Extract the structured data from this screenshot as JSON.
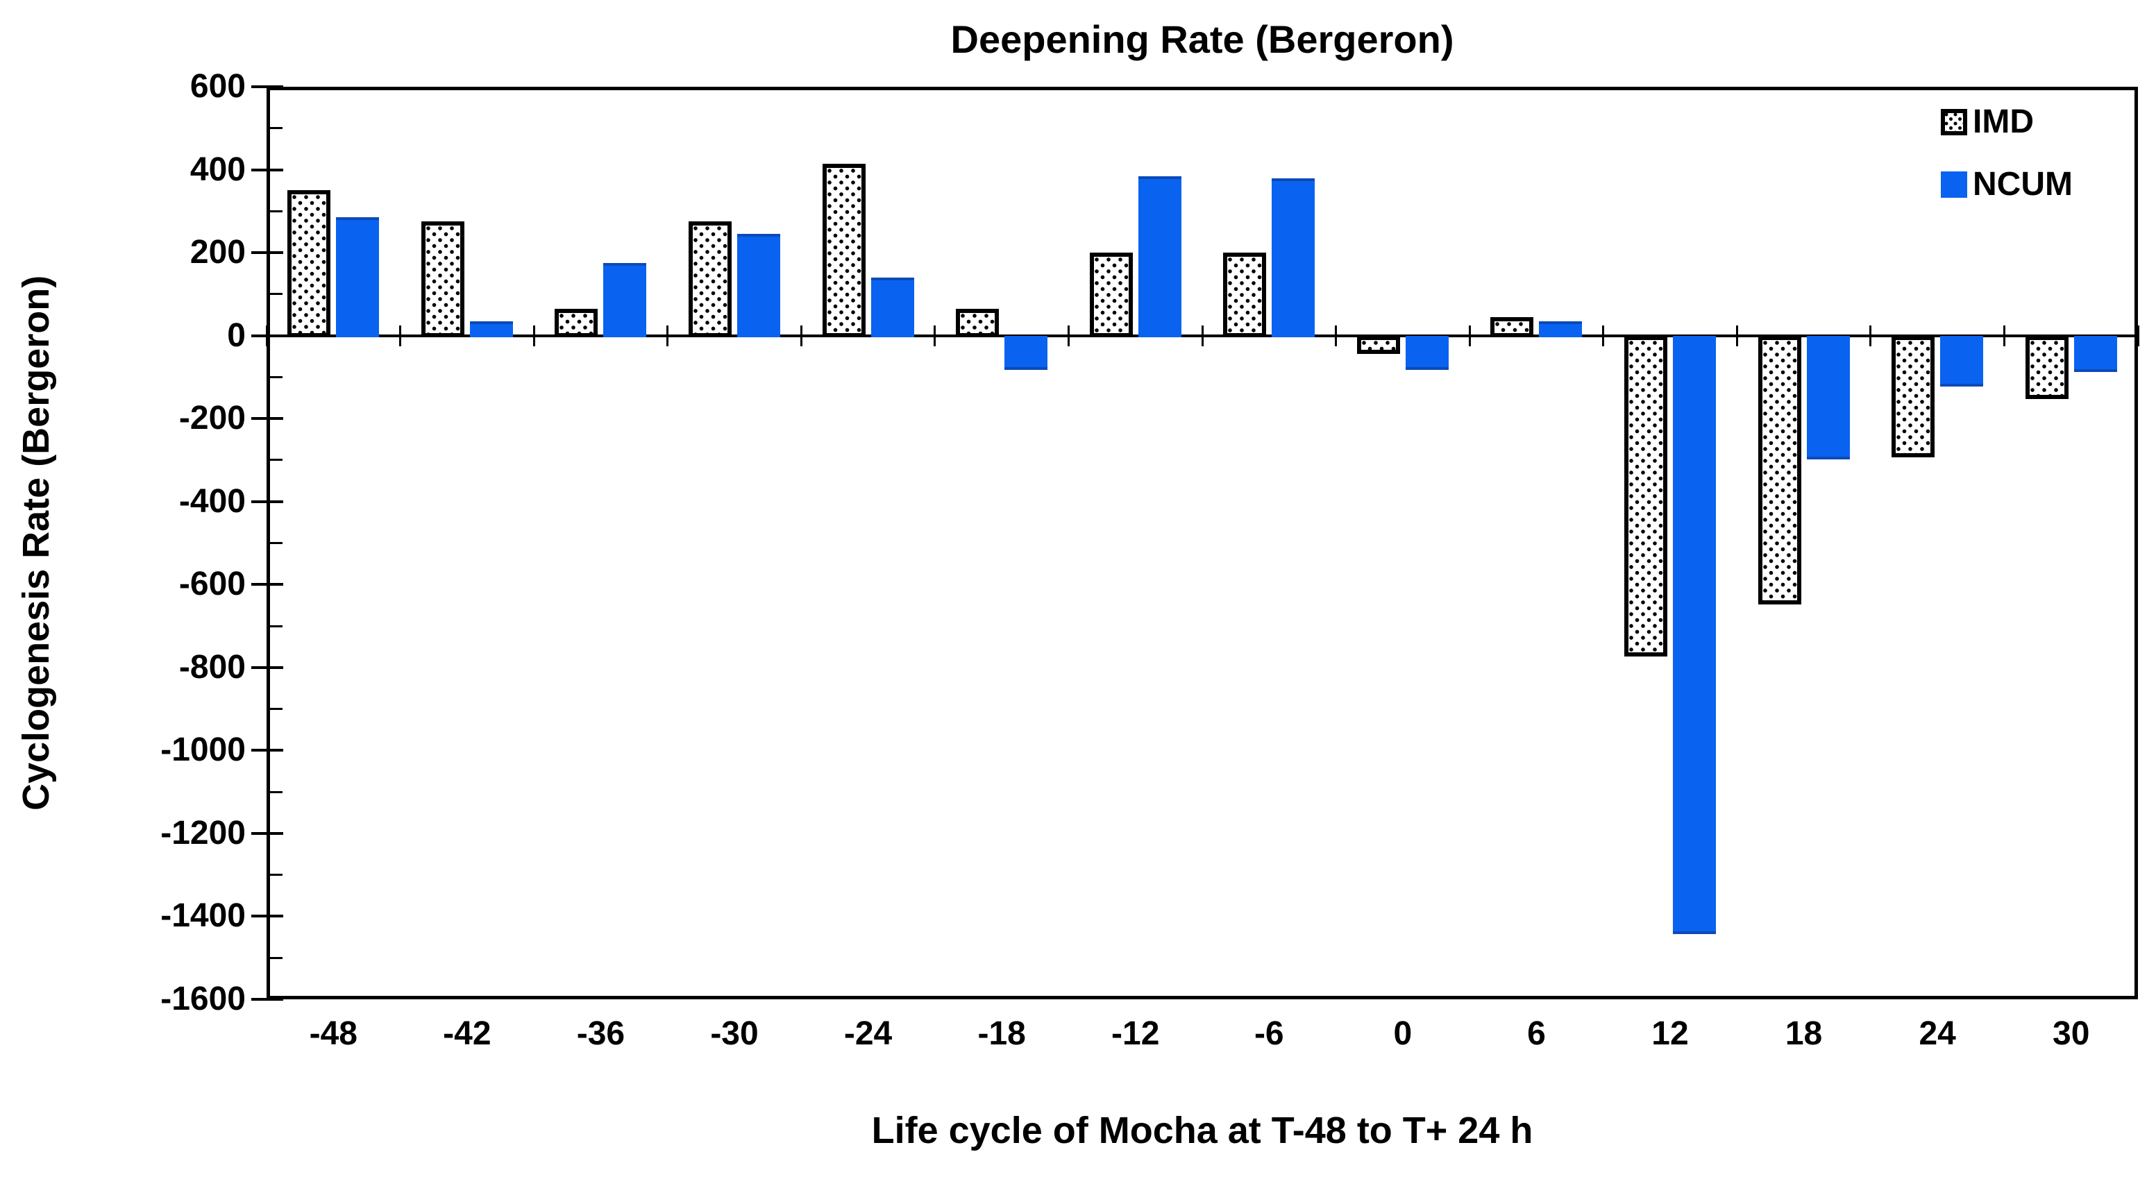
{
  "title": "Deepening Rate (Bergeron)",
  "chart_data": {
    "type": "bar",
    "title": "Deepening Rate (Bergeron)",
    "xlabel": "Life cycle of Mocha at T-48 to T+ 24 h",
    "ylabel": "Cyclogenesis Rate (Bergeron)",
    "categories": [
      "-48",
      "-42",
      "-36",
      "-30",
      "-24",
      "-18",
      "-12",
      "-6",
      "0",
      "6",
      "12",
      "18",
      "24",
      "30"
    ],
    "series": [
      {
        "name": "IMD",
        "style": "dotted-pattern-black-on-white",
        "values": [
          350,
          275,
          65,
          275,
          415,
          65,
          200,
          200,
          -40,
          45,
          -770,
          -645,
          -290,
          -150
        ]
      },
      {
        "name": "NCUM",
        "style": "solid",
        "color": "#0a63f0",
        "values": [
          285,
          35,
          175,
          245,
          140,
          -80,
          385,
          380,
          -80,
          35,
          -1440,
          -295,
          -120,
          -85
        ]
      }
    ],
    "ylim": [
      -1600,
      600
    ],
    "y_major_tick_step": 200,
    "y_minor_tick_step": 100,
    "y_tick_labels": [
      "600",
      "400",
      "200",
      "0",
      "-200",
      "-400",
      "-600",
      "-800",
      "-1000",
      "-1200",
      "-1400",
      "-1600"
    ],
    "legend_position": "top-right-inside",
    "grid": false
  },
  "colors": {
    "ncum_blue": "#0a63f0",
    "ncum_edge": "#0b4ab8",
    "ink": "#000000",
    "background": "#ffffff"
  }
}
